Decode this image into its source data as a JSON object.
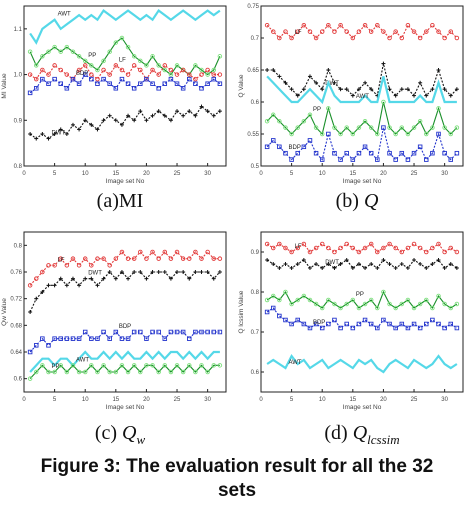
{
  "figure": {
    "caption_line1": "Figure 3: The evaluation result for all the 32",
    "caption_line2": "sets"
  },
  "panels": [
    {
      "id": "a",
      "caption_prefix": "(a)",
      "caption_main": "MI",
      "caption_sub": "",
      "ylabel": "MI Value",
      "xlabel": "Image set No"
    },
    {
      "id": "b",
      "caption_prefix": "(b) ",
      "caption_main": "Q",
      "caption_sub": "",
      "ylabel": "Q Value",
      "xlabel": "Image set No"
    },
    {
      "id": "c",
      "caption_prefix": "(c) ",
      "caption_main": "Q",
      "caption_sub": "w",
      "ylabel": "Qw Value",
      "xlabel": "Image set No"
    },
    {
      "id": "d",
      "caption_prefix": "(d) ",
      "caption_main": "Q",
      "caption_sub": "lcssim",
      "ylabel": "Q lcssim Value",
      "xlabel": "Image set No"
    }
  ],
  "colors": {
    "awt": "#55d8e8",
    "pp": "#1a8f2a",
    "pp_marker": "#7be07b",
    "lf": "#e23b3b",
    "bdp": "#2233cc",
    "dwt": "#111111"
  },
  "chart_data": [
    {
      "type": "line",
      "panel": "a",
      "ylabel": "MI Value",
      "xlabel": "Image set No",
      "xlim": [
        0,
        33
      ],
      "ylim": [
        0.8,
        1.15
      ],
      "xticks": [
        "0",
        "5",
        "10",
        "15",
        "20",
        "25",
        "30"
      ],
      "yticks": [
        "0.8",
        "0.9",
        "1.0",
        "1.1"
      ],
      "series": [
        {
          "name": "AWT",
          "color_key": "awt",
          "marker": "none",
          "values": [
            1.09,
            1.07,
            1.1,
            1.11,
            1.12,
            1.1,
            1.11,
            1.12,
            1.13,
            1.12,
            1.13,
            1.12,
            1.14,
            1.13,
            1.12,
            1.13,
            1.14,
            1.13,
            1.12,
            1.13,
            1.12,
            1.14,
            1.13,
            1.12,
            1.13,
            1.14,
            1.13,
            1.12,
            1.13,
            1.14,
            1.13,
            1.14
          ]
        },
        {
          "name": "PP",
          "color_key": "pp",
          "marker": "circle",
          "values": [
            1.05,
            1.02,
            1.04,
            1.05,
            1.06,
            1.05,
            1.06,
            1.05,
            1.04,
            1.03,
            1.02,
            1.01,
            1.03,
            1.05,
            1.07,
            1.08,
            1.06,
            1.04,
            1.03,
            1.02,
            1.04,
            1.02,
            1.01,
            1.0,
            1.02,
            1.01,
            1.0,
            1.02,
            1.01,
            1.0,
            1.01,
            1.04
          ]
        },
        {
          "name": "LF",
          "color_key": "lf",
          "marker": "circle",
          "values": [
            1.0,
            0.99,
            1.01,
            1.0,
            1.02,
            1.01,
            1.0,
            0.99,
            1.01,
            1.02,
            1.0,
            0.99,
            1.01,
            1.0,
            1.02,
            1.01,
            1.0,
            1.02,
            1.01,
            0.99,
            1.01,
            1.0,
            1.02,
            1.01,
            1.0,
            1.01,
            1.0,
            0.99,
            1.0,
            1.01,
            1.0,
            1.0
          ]
        },
        {
          "name": "BDP",
          "color_key": "bdp",
          "marker": "square",
          "values": [
            0.96,
            0.97,
            0.99,
            0.98,
            0.99,
            0.98,
            0.97,
            0.99,
            0.98,
            1.0,
            0.99,
            0.98,
            0.99,
            0.98,
            0.97,
            0.99,
            0.98,
            0.97,
            0.98,
            0.99,
            0.98,
            0.97,
            0.98,
            0.99,
            0.98,
            0.97,
            0.99,
            0.98,
            0.97,
            0.98,
            0.99,
            0.98
          ]
        },
        {
          "name": "DWT",
          "color_key": "dwt",
          "marker": "star",
          "values": [
            0.87,
            0.86,
            0.87,
            0.86,
            0.87,
            0.88,
            0.87,
            0.89,
            0.88,
            0.9,
            0.89,
            0.88,
            0.9,
            0.91,
            0.9,
            0.89,
            0.91,
            0.9,
            0.92,
            0.9,
            0.91,
            0.92,
            0.91,
            0.9,
            0.92,
            0.91,
            0.92,
            0.91,
            0.93,
            0.92,
            0.91,
            0.92
          ]
        }
      ],
      "annotations": [
        "AWT",
        "PP",
        "LF",
        "BDP",
        "DWT"
      ]
    },
    {
      "type": "line",
      "panel": "b",
      "ylabel": "Q Value",
      "xlabel": "Image set No",
      "xlim": [
        0,
        33
      ],
      "ylim": [
        0.5,
        0.75
      ],
      "xticks": [
        "0",
        "5",
        "10",
        "15",
        "20",
        "25",
        "30"
      ],
      "yticks": [
        "0.5",
        "0.55",
        "0.6",
        "0.65",
        "0.7",
        "0.75"
      ],
      "series": [
        {
          "name": "LF",
          "color_key": "lf",
          "marker": "circle",
          "values": [
            0.72,
            0.71,
            0.7,
            0.71,
            0.7,
            0.71,
            0.72,
            0.71,
            0.7,
            0.71,
            0.72,
            0.71,
            0.72,
            0.71,
            0.7,
            0.71,
            0.72,
            0.71,
            0.72,
            0.71,
            0.7,
            0.71,
            0.7,
            0.72,
            0.71,
            0.7,
            0.71,
            0.72,
            0.71,
            0.7,
            0.71,
            0.7
          ]
        },
        {
          "name": "DWT",
          "color_key": "dwt",
          "marker": "star",
          "values": [
            0.65,
            0.65,
            0.64,
            0.63,
            0.62,
            0.61,
            0.62,
            0.64,
            0.63,
            0.62,
            0.65,
            0.63,
            0.62,
            0.62,
            0.61,
            0.62,
            0.63,
            0.62,
            0.61,
            0.66,
            0.62,
            0.61,
            0.62,
            0.62,
            0.61,
            0.63,
            0.61,
            0.62,
            0.65,
            0.62,
            0.61,
            0.62
          ]
        },
        {
          "name": "AWT",
          "color_key": "awt",
          "marker": "none",
          "values": [
            0.64,
            0.63,
            0.62,
            0.61,
            0.6,
            0.6,
            0.61,
            0.62,
            0.61,
            0.6,
            0.63,
            0.61,
            0.6,
            0.6,
            0.6,
            0.6,
            0.61,
            0.6,
            0.6,
            0.64,
            0.6,
            0.6,
            0.6,
            0.6,
            0.6,
            0.61,
            0.6,
            0.6,
            0.63,
            0.6,
            0.6,
            0.6
          ]
        },
        {
          "name": "PP",
          "color_key": "pp",
          "marker": "circle",
          "values": [
            0.57,
            0.58,
            0.57,
            0.56,
            0.55,
            0.56,
            0.57,
            0.58,
            0.56,
            0.55,
            0.59,
            0.56,
            0.55,
            0.56,
            0.55,
            0.56,
            0.57,
            0.56,
            0.55,
            0.6,
            0.56,
            0.55,
            0.56,
            0.55,
            0.56,
            0.57,
            0.55,
            0.56,
            0.59,
            0.56,
            0.55,
            0.56
          ]
        },
        {
          "name": "BDP",
          "color_key": "bdp",
          "marker": "square",
          "values": [
            0.53,
            0.54,
            0.53,
            0.52,
            0.51,
            0.52,
            0.53,
            0.54,
            0.52,
            0.51,
            0.55,
            0.52,
            0.51,
            0.52,
            0.51,
            0.52,
            0.53,
            0.52,
            0.51,
            0.56,
            0.52,
            0.51,
            0.52,
            0.51,
            0.52,
            0.53,
            0.51,
            0.52,
            0.55,
            0.52,
            0.51,
            0.52
          ]
        }
      ],
      "annotations": [
        "LF",
        "DWT",
        "AWT",
        "PP",
        "BDP"
      ]
    },
    {
      "type": "line",
      "panel": "c",
      "ylabel": "Qw Value",
      "xlabel": "Image set No",
      "xlim": [
        0,
        33
      ],
      "ylim": [
        0.58,
        0.82
      ],
      "xticks": [
        "0",
        "5",
        "10",
        "15",
        "20",
        "25",
        "30"
      ],
      "yticks": [
        "0.6",
        "0.64",
        "0.68",
        "0.72",
        "0.76",
        "0.8"
      ],
      "series": [
        {
          "name": "LF",
          "color_key": "lf",
          "marker": "circle",
          "values": [
            0.74,
            0.75,
            0.76,
            0.77,
            0.77,
            0.78,
            0.77,
            0.78,
            0.77,
            0.78,
            0.77,
            0.78,
            0.78,
            0.77,
            0.78,
            0.79,
            0.78,
            0.78,
            0.79,
            0.78,
            0.79,
            0.78,
            0.79,
            0.78,
            0.79,
            0.78,
            0.78,
            0.79,
            0.78,
            0.79,
            0.78,
            0.78
          ]
        },
        {
          "name": "DWT",
          "color_key": "dwt",
          "marker": "star",
          "values": [
            0.7,
            0.72,
            0.73,
            0.74,
            0.74,
            0.75,
            0.74,
            0.75,
            0.74,
            0.75,
            0.75,
            0.74,
            0.75,
            0.76,
            0.75,
            0.76,
            0.75,
            0.76,
            0.76,
            0.75,
            0.76,
            0.76,
            0.76,
            0.75,
            0.76,
            0.76,
            0.75,
            0.76,
            0.76,
            0.76,
            0.75,
            0.76
          ]
        },
        {
          "name": "BDP",
          "color_key": "bdp",
          "marker": "square",
          "values": [
            0.64,
            0.65,
            0.66,
            0.65,
            0.66,
            0.66,
            0.66,
            0.66,
            0.66,
            0.67,
            0.66,
            0.66,
            0.67,
            0.66,
            0.67,
            0.66,
            0.66,
            0.67,
            0.67,
            0.66,
            0.67,
            0.67,
            0.66,
            0.67,
            0.67,
            0.67,
            0.66,
            0.67,
            0.67,
            0.67,
            0.67,
            0.67
          ]
        },
        {
          "name": "AWT",
          "color_key": "awt",
          "marker": "none",
          "values": [
            0.61,
            0.62,
            0.63,
            0.63,
            0.62,
            0.63,
            0.63,
            0.62,
            0.63,
            0.64,
            0.63,
            0.63,
            0.64,
            0.63,
            0.64,
            0.63,
            0.64,
            0.63,
            0.63,
            0.64,
            0.63,
            0.64,
            0.63,
            0.64,
            0.64,
            0.63,
            0.64,
            0.63,
            0.64,
            0.63,
            0.64,
            0.64
          ]
        },
        {
          "name": "PP",
          "color_key": "pp",
          "marker": "circle",
          "values": [
            0.6,
            0.61,
            0.62,
            0.61,
            0.61,
            0.62,
            0.61,
            0.62,
            0.61,
            0.61,
            0.62,
            0.61,
            0.62,
            0.61,
            0.61,
            0.62,
            0.61,
            0.62,
            0.61,
            0.62,
            0.62,
            0.61,
            0.62,
            0.61,
            0.62,
            0.61,
            0.62,
            0.61,
            0.62,
            0.61,
            0.62,
            0.62
          ]
        }
      ],
      "annotations": [
        "LF",
        "DWT",
        "BDP",
        "AWT",
        "PP"
      ]
    },
    {
      "type": "line",
      "panel": "d",
      "ylabel": "Q lcssim Value",
      "xlabel": "Image set No",
      "xlim": [
        0,
        33
      ],
      "ylim": [
        0.55,
        0.95
      ],
      "xticks": [
        "0",
        "5",
        "10",
        "15",
        "20",
        "25",
        "30"
      ],
      "yticks": [
        "0.6",
        "0.7",
        "0.8",
        "0.9"
      ],
      "series": [
        {
          "name": "LF",
          "color_key": "lf",
          "marker": "circle",
          "values": [
            0.92,
            0.91,
            0.92,
            0.91,
            0.9,
            0.91,
            0.92,
            0.9,
            0.91,
            0.92,
            0.91,
            0.9,
            0.91,
            0.92,
            0.91,
            0.9,
            0.91,
            0.92,
            0.9,
            0.91,
            0.92,
            0.91,
            0.9,
            0.91,
            0.92,
            0.91,
            0.9,
            0.91,
            0.92,
            0.9,
            0.91,
            0.9
          ]
        },
        {
          "name": "DWT",
          "color_key": "dwt",
          "marker": "star",
          "values": [
            0.88,
            0.87,
            0.86,
            0.87,
            0.86,
            0.87,
            0.88,
            0.86,
            0.87,
            0.86,
            0.87,
            0.86,
            0.87,
            0.88,
            0.86,
            0.87,
            0.86,
            0.87,
            0.86,
            0.88,
            0.87,
            0.86,
            0.87,
            0.86,
            0.88,
            0.87,
            0.86,
            0.87,
            0.88,
            0.86,
            0.87,
            0.86
          ]
        },
        {
          "name": "PP",
          "color_key": "pp",
          "marker": "circle",
          "values": [
            0.78,
            0.79,
            0.78,
            0.8,
            0.77,
            0.78,
            0.79,
            0.78,
            0.77,
            0.76,
            0.78,
            0.77,
            0.76,
            0.77,
            0.78,
            0.76,
            0.77,
            0.78,
            0.76,
            0.8,
            0.77,
            0.76,
            0.77,
            0.78,
            0.76,
            0.77,
            0.78,
            0.76,
            0.79,
            0.77,
            0.76,
            0.77
          ]
        },
        {
          "name": "BDP",
          "color_key": "bdp",
          "marker": "square",
          "values": [
            0.75,
            0.76,
            0.74,
            0.73,
            0.72,
            0.73,
            0.72,
            0.71,
            0.72,
            0.71,
            0.72,
            0.73,
            0.71,
            0.72,
            0.71,
            0.72,
            0.73,
            0.72,
            0.71,
            0.73,
            0.72,
            0.71,
            0.72,
            0.71,
            0.72,
            0.71,
            0.72,
            0.73,
            0.72,
            0.71,
            0.72,
            0.71
          ]
        },
        {
          "name": "AWT",
          "color_key": "awt",
          "marker": "none",
          "values": [
            0.62,
            0.63,
            0.62,
            0.61,
            0.64,
            0.62,
            0.63,
            0.61,
            0.62,
            0.63,
            0.61,
            0.62,
            0.63,
            0.62,
            0.61,
            0.63,
            0.62,
            0.63,
            0.61,
            0.6,
            0.62,
            0.63,
            0.62,
            0.61,
            0.63,
            0.62,
            0.61,
            0.62,
            0.64,
            0.62,
            0.61,
            0.62
          ]
        }
      ],
      "annotations": [
        "LF",
        "DWT",
        "PP",
        "BDP",
        "AWT"
      ]
    }
  ]
}
